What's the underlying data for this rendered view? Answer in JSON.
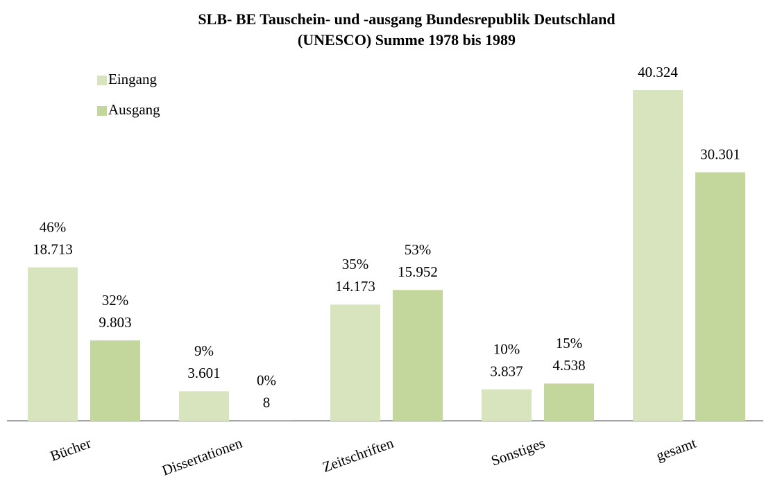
{
  "chart_data": {
    "type": "bar",
    "title": [
      "SLB- BE Tauschein- und -ausgang Bundesrepublik Deutschland",
      "(UNESCO) Summe 1978 bis 1989"
    ],
    "categories": [
      "Bücher",
      "Dissertationen",
      "Zeitschriften",
      "Sonstiges",
      "gesamt"
    ],
    "series": [
      {
        "name": "Eingang",
        "color": "#d7e4bd",
        "values": [
          18713,
          3601,
          14173,
          3837,
          40324
        ],
        "value_labels": [
          "18.713",
          "3.601",
          "14.173",
          "3.837",
          "40.324"
        ],
        "percent_labels": [
          "46%",
          "9%",
          "35%",
          "10%",
          null
        ]
      },
      {
        "name": "Ausgang",
        "color": "#c3d69b",
        "values": [
          9803,
          8,
          15952,
          4538,
          30301
        ],
        "value_labels": [
          "9.803",
          "8",
          "15.952",
          "4.538",
          "30.301"
        ],
        "percent_labels": [
          "32%",
          "0%",
          "53%",
          "15%",
          null
        ]
      }
    ],
    "legend": "top-left"
  }
}
